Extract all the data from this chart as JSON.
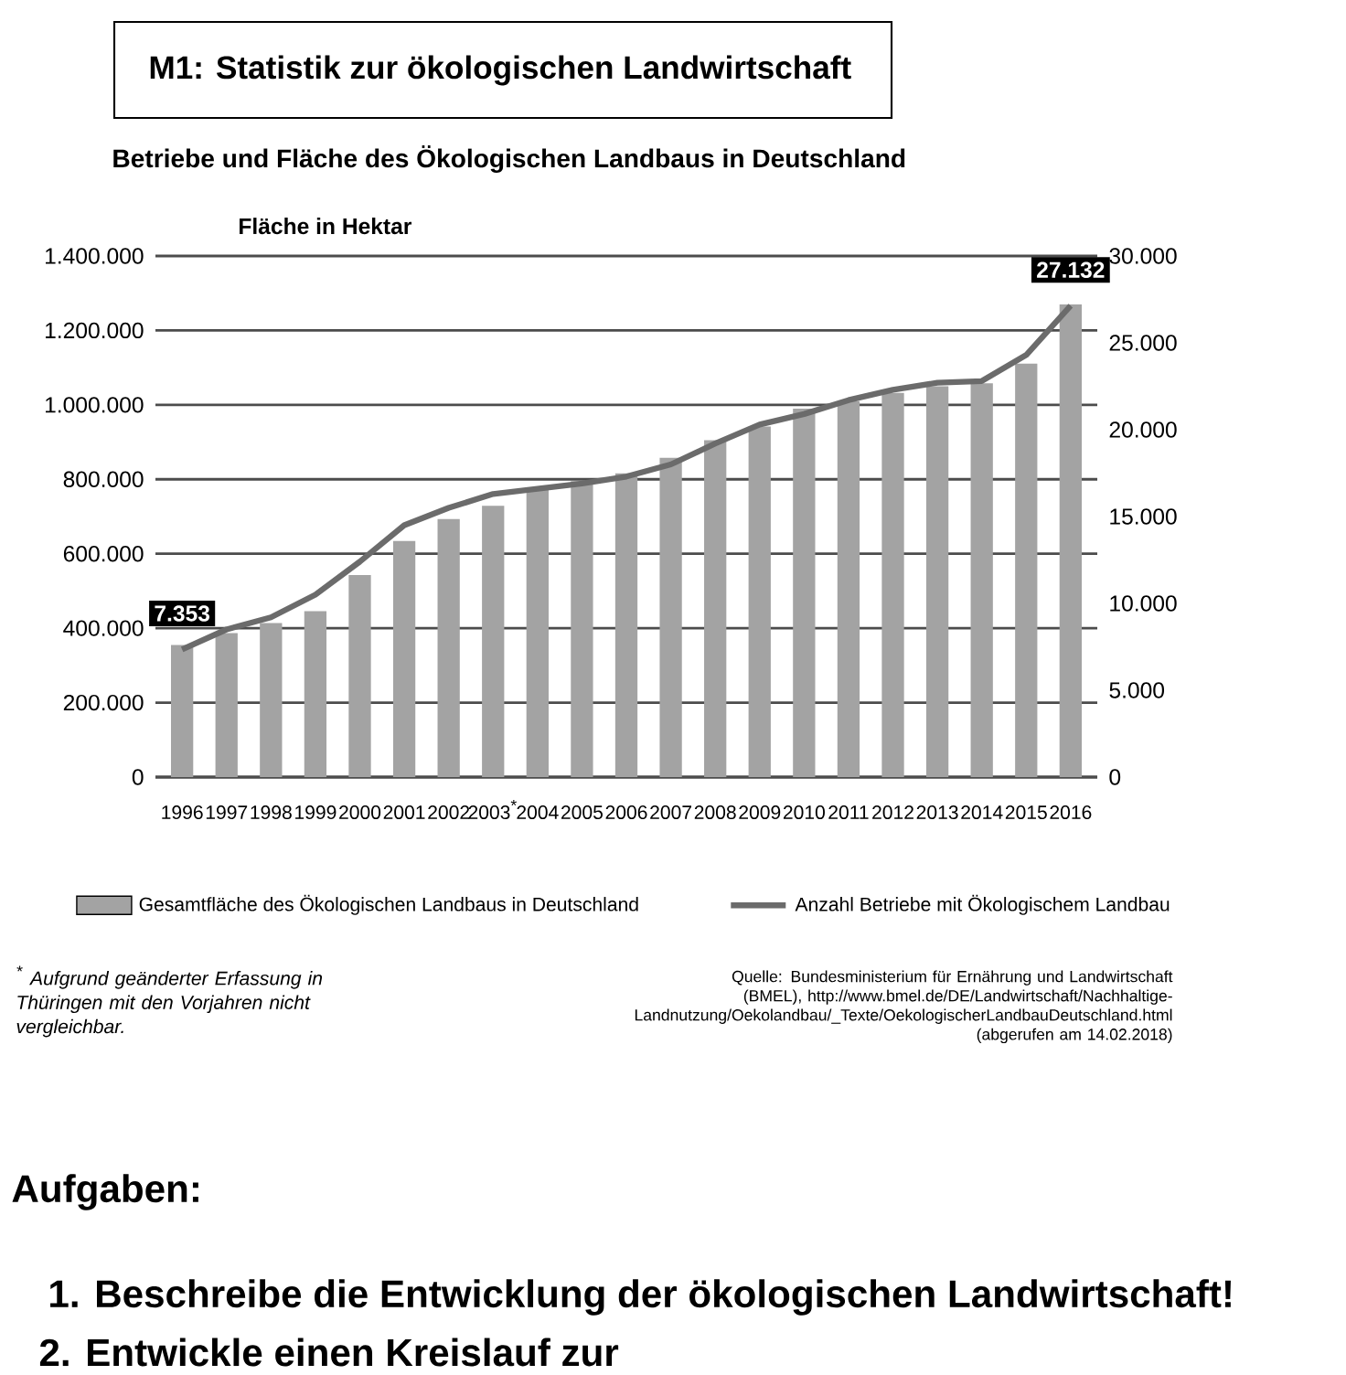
{
  "chart_data": {
    "type": "bar",
    "title": "M1: Statistik zur ökologischen Landwirtschaft",
    "subtitle": "Betriebe und Fläche des Ökologischen Landbaus in Deutschland",
    "ylabel": "Fläche in Hektar",
    "categories": [
      "1996",
      "1997",
      "1998",
      "1999",
      "2000",
      "2001",
      "2002",
      "2003$^{*}$",
      "2004",
      "2005",
      "2006",
      "2007",
      "2008",
      "2009",
      "2010",
      "2011",
      "2012",
      "2013",
      "2014",
      "2015",
      "2016"
    ],
    "series": [
      {
        "name": "Gesamtfläche des Ökologischen Landbaus in Deutschland",
        "type": "bar",
        "color": "#a3a3a3",
        "values": [
          355000,
          387000,
          414000,
          446000,
          543000,
          634000,
          693000,
          729000,
          774000,
          795000,
          816000,
          858000,
          905000,
          942000,
          990000,
          1010000,
          1032000,
          1050000,
          1058000,
          1111000,
          1270000
        ]
      },
      {
        "name": "Anzahl Betriebe mit Ökologischem Landbau",
        "type": "line",
        "axis": "y2",
        "color": "#6b6b6b",
        "values": [
          7353,
          8500,
          9200,
          10500,
          12400,
          14500,
          15500,
          16300,
          16600,
          16900,
          17300,
          18000,
          19200,
          20300,
          20900,
          21700,
          22300,
          22700,
          22800,
          24300,
          27132
        ],
        "value_labels": [
          "7.353",
          null,
          null,
          null,
          null,
          null,
          null,
          null,
          null,
          null,
          null,
          null,
          null,
          null,
          null,
          null,
          null,
          null,
          null,
          null,
          "27.132"
        ]
      }
    ],
    "ylim": [
      0,
      1400000
    ],
    "yticks": [
      {
        "value": 0,
        "label": "0"
      },
      {
        "value": 200000,
        "label": "200.000"
      },
      {
        "value": 400000,
        "label": "400.000"
      },
      {
        "value": 600000,
        "label": "600.000"
      },
      {
        "value": 800000,
        "label": "800.000"
      },
      {
        "value": 1000000,
        "label": "1.000.000"
      },
      {
        "value": 1200000,
        "label": "1.200.000"
      },
      {
        "value": 1400000,
        "label": "1.400.000"
      }
    ],
    "y2lim": [
      0,
      30000
    ],
    "y2ticks": [
      {
        "value": 0,
        "label": "0"
      },
      {
        "value": 5000,
        "label": "5.000"
      },
      {
        "value": 10000,
        "label": "10.000"
      },
      {
        "value": 15000,
        "label": "15.000"
      },
      {
        "value": 20000,
        "label": "20.000"
      },
      {
        "value": 25000,
        "label": "25.000"
      },
      {
        "value": 30000,
        "label": "30.000"
      }
    ],
    "grid": "y",
    "legend": "bottom",
    "annotations": [
      "$^{*}$ Aufgrund geänderter Erfassung in Thüringen mit den Vorjahren nicht vergleichbar.",
      "Quelle: Bundesministerium für Ernährung und Landwirtschaft (BMEL), http://www.bmel.de/DE/Landwirtschaft/Nachhaltige-Landnutzung/Oekolandbau/_Texte/OekologischerLandbauDeutschland.html (abgerufen am 14.02.2018)",
      "Aufgaben:",
      "1. Beschreibe die Entwicklung der ökologischen Landwirtschaft!",
      "2. Entwickle einen Kreislauf zur"
    ]
  }
}
